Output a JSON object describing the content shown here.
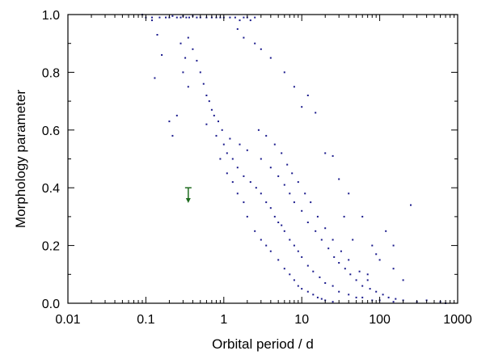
{
  "chart_data": {
    "type": "scatter",
    "xlabel": "Orbital period / d",
    "ylabel": "Morphology parameter",
    "x_scale": "log",
    "xlim": [
      0.01,
      1000
    ],
    "ylim": [
      0.0,
      1.0
    ],
    "x_ticks": [
      0.01,
      0.1,
      1,
      10,
      100,
      1000
    ],
    "x_tick_labels": [
      "0.01",
      "0.1",
      "1",
      "10",
      "100",
      "1000"
    ],
    "y_ticks": [
      0.0,
      0.2,
      0.4,
      0.6,
      0.8,
      1.0
    ],
    "y_tick_labels": [
      "0.0",
      "0.2",
      "0.4",
      "0.6",
      "0.8",
      "1.0"
    ],
    "grid": false,
    "legend": "none",
    "colors": {
      "points": "#1a1a8c",
      "marker": "#1e6b1e",
      "axes": "#000000"
    },
    "marker": {
      "x": 0.35,
      "y_top": 0.4,
      "y_bottom": 0.35,
      "shape": "downward-arrow-upper-limit"
    },
    "series": [
      {
        "values": [
          [
            0.09,
            1.0
          ],
          [
            0.1,
            0.99
          ],
          [
            0.12,
            0.99
          ],
          [
            0.15,
            0.99
          ],
          [
            0.18,
            0.99
          ],
          [
            0.2,
            0.99
          ],
          [
            0.22,
            0.995
          ],
          [
            0.25,
            0.99
          ],
          [
            0.28,
            0.99
          ],
          [
            0.3,
            0.995
          ],
          [
            0.33,
            0.99
          ],
          [
            0.36,
            0.99
          ],
          [
            0.4,
            0.995
          ],
          [
            0.45,
            0.99
          ],
          [
            0.5,
            0.99
          ],
          [
            0.6,
            0.99
          ],
          [
            0.7,
            0.99
          ],
          [
            0.8,
            0.99
          ],
          [
            0.9,
            0.99
          ],
          [
            1.0,
            0.99
          ],
          [
            1.2,
            0.99
          ],
          [
            1.4,
            0.99
          ],
          [
            1.6,
            0.98
          ],
          [
            1.8,
            0.99
          ],
          [
            2.0,
            0.99
          ],
          [
            2.2,
            0.98
          ],
          [
            2.5,
            0.99
          ],
          [
            0.13,
            0.78
          ],
          [
            0.16,
            0.86
          ],
          [
            0.2,
            0.63
          ],
          [
            0.22,
            0.58
          ],
          [
            1.0,
            0.55
          ],
          [
            1.1,
            0.52
          ],
          [
            1.3,
            0.5
          ],
          [
            1.5,
            0.47
          ],
          [
            1.8,
            0.44
          ],
          [
            2.2,
            0.42
          ],
          [
            2.6,
            0.4
          ],
          [
            3.0,
            0.38
          ],
          [
            3.5,
            0.35
          ],
          [
            4.0,
            0.33
          ],
          [
            4.5,
            0.3
          ],
          [
            5.0,
            0.28
          ],
          [
            5.5,
            0.27
          ],
          [
            6.0,
            0.25
          ],
          [
            7.0,
            0.22
          ],
          [
            8.0,
            0.2
          ],
          [
            9.0,
            0.18
          ],
          [
            10.0,
            0.16
          ],
          [
            12.0,
            0.13
          ],
          [
            14.0,
            0.11
          ],
          [
            17.0,
            0.09
          ],
          [
            20.0,
            0.07
          ],
          [
            25.0,
            0.06
          ],
          [
            30.0,
            0.04
          ],
          [
            40.0,
            0.03
          ],
          [
            50.0,
            0.02
          ],
          [
            60.0,
            0.02
          ],
          [
            80.0,
            0.01
          ],
          [
            100.0,
            0.01
          ],
          [
            150.0,
            0.005
          ],
          [
            200.0,
            0.01
          ],
          [
            300.0,
            0.005
          ],
          [
            400.0,
            0.01
          ],
          [
            600.0,
            0.005
          ],
          [
            700.0,
            0.0
          ],
          [
            8.0,
            0.75
          ],
          [
            10.0,
            0.68
          ],
          [
            15.0,
            0.66
          ],
          [
            20.0,
            0.52
          ],
          [
            25.0,
            0.51
          ],
          [
            30.0,
            0.43
          ],
          [
            40.0,
            0.38
          ],
          [
            60.0,
            0.3
          ],
          [
            80.0,
            0.2
          ],
          [
            100.0,
            0.15
          ],
          [
            150.0,
            0.12
          ],
          [
            200.0,
            0.08
          ],
          [
            250.0,
            0.34
          ],
          [
            150.0,
            0.2
          ],
          [
            120.0,
            0.25
          ],
          [
            90.0,
            0.17
          ],
          [
            70.0,
            0.1
          ],
          [
            45.0,
            0.22
          ],
          [
            35.0,
            0.3
          ],
          [
            12.0,
            0.72
          ],
          [
            6.0,
            0.8
          ],
          [
            4.0,
            0.85
          ],
          [
            3.0,
            0.88
          ],
          [
            2.5,
            0.9
          ],
          [
            1.8,
            0.92
          ],
          [
            1.5,
            0.95
          ],
          [
            0.14,
            0.93
          ],
          [
            0.12,
            0.98
          ],
          [
            0.25,
            0.65
          ],
          [
            0.6,
            0.62
          ],
          [
            0.8,
            0.58
          ],
          [
            1.2,
            0.57
          ],
          [
            1.6,
            0.55
          ],
          [
            2.0,
            0.53
          ],
          [
            3.0,
            0.5
          ],
          [
            4.0,
            0.47
          ],
          [
            5.0,
            0.44
          ],
          [
            6.0,
            0.41
          ],
          [
            7.0,
            0.38
          ],
          [
            8.0,
            0.35
          ],
          [
            10.0,
            0.32
          ],
          [
            12.0,
            0.28
          ],
          [
            15.0,
            0.25
          ],
          [
            18.0,
            0.22
          ],
          [
            22.0,
            0.19
          ],
          [
            26.0,
            0.16
          ],
          [
            30.0,
            0.14
          ],
          [
            36.0,
            0.12
          ],
          [
            42.0,
            0.1
          ],
          [
            50.0,
            0.08
          ],
          [
            60.0,
            0.06
          ],
          [
            75.0,
            0.05
          ],
          [
            90.0,
            0.04
          ],
          [
            110.0,
            0.03
          ],
          [
            130.0,
            0.02
          ],
          [
            160.0,
            0.015
          ],
          [
            0.35,
            0.75
          ],
          [
            0.3,
            0.8
          ],
          [
            0.32,
            0.85
          ],
          [
            0.28,
            0.9
          ],
          [
            0.35,
            0.92
          ],
          [
            0.4,
            0.88
          ],
          [
            0.45,
            0.84
          ],
          [
            0.5,
            0.8
          ],
          [
            0.55,
            0.76
          ],
          [
            0.6,
            0.72
          ],
          [
            0.65,
            0.7
          ],
          [
            0.7,
            0.67
          ],
          [
            0.75,
            0.65
          ],
          [
            0.85,
            0.63
          ],
          [
            0.95,
            0.6
          ],
          [
            2.5,
            0.25
          ],
          [
            3.0,
            0.22
          ],
          [
            3.5,
            0.2
          ],
          [
            4.0,
            0.18
          ],
          [
            5.0,
            0.15
          ],
          [
            6.0,
            0.12
          ],
          [
            7.0,
            0.1
          ],
          [
            8.0,
            0.08
          ],
          [
            9.0,
            0.06
          ],
          [
            10.0,
            0.05
          ],
          [
            12.0,
            0.04
          ],
          [
            14.0,
            0.03
          ],
          [
            16.0,
            0.02
          ],
          [
            18.0,
            0.015
          ],
          [
            20.0,
            0.01
          ],
          [
            25.0,
            0.005
          ],
          [
            2.0,
            0.3
          ],
          [
            1.8,
            0.35
          ],
          [
            1.5,
            0.38
          ],
          [
            1.3,
            0.42
          ],
          [
            1.1,
            0.45
          ],
          [
            0.9,
            0.5
          ],
          [
            2.8,
            0.6
          ],
          [
            3.5,
            0.58
          ],
          [
            4.5,
            0.55
          ],
          [
            5.5,
            0.52
          ],
          [
            6.5,
            0.48
          ],
          [
            7.5,
            0.45
          ],
          [
            9.0,
            0.42
          ],
          [
            11.0,
            0.38
          ],
          [
            13.0,
            0.35
          ],
          [
            16.0,
            0.3
          ],
          [
            20.0,
            0.26
          ],
          [
            25.0,
            0.22
          ],
          [
            32.0,
            0.18
          ],
          [
            40.0,
            0.15
          ],
          [
            55.0,
            0.11
          ],
          [
            70.0,
            0.08
          ]
        ]
      }
    ]
  }
}
